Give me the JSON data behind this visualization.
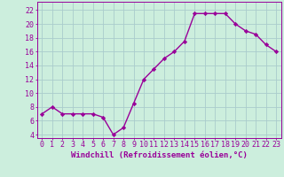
{
  "x": [
    0,
    1,
    2,
    3,
    4,
    5,
    6,
    7,
    8,
    9,
    10,
    11,
    12,
    13,
    14,
    15,
    16,
    17,
    18,
    19,
    20,
    21,
    22,
    23
  ],
  "y": [
    7,
    8,
    7,
    7,
    7,
    7,
    6.5,
    4,
    5,
    8.5,
    12,
    13.5,
    15,
    16,
    17.5,
    21.5,
    21.5,
    21.5,
    21.5,
    20,
    19,
    18.5,
    17,
    16
  ],
  "line_color": "#990099",
  "marker": "D",
  "marker_size": 2.2,
  "line_width": 1.0,
  "background_color": "#cceedd",
  "grid_color": "#aacccc",
  "xlabel": "Windchill (Refroidissement éolien,°C)",
  "xlabel_fontsize": 6.5,
  "ylabel_ticks": [
    4,
    6,
    8,
    10,
    12,
    14,
    16,
    18,
    20,
    22
  ],
  "xtick_labels": [
    "0",
    "1",
    "2",
    "3",
    "4",
    "5",
    "6",
    "7",
    "8",
    "9",
    "10",
    "11",
    "12",
    "13",
    "14",
    "15",
    "16",
    "17",
    "18",
    "19",
    "20",
    "21",
    "22",
    "23"
  ],
  "xlim": [
    -0.5,
    23.5
  ],
  "ylim": [
    3.5,
    23.2
  ],
  "tick_fontsize": 6.0
}
